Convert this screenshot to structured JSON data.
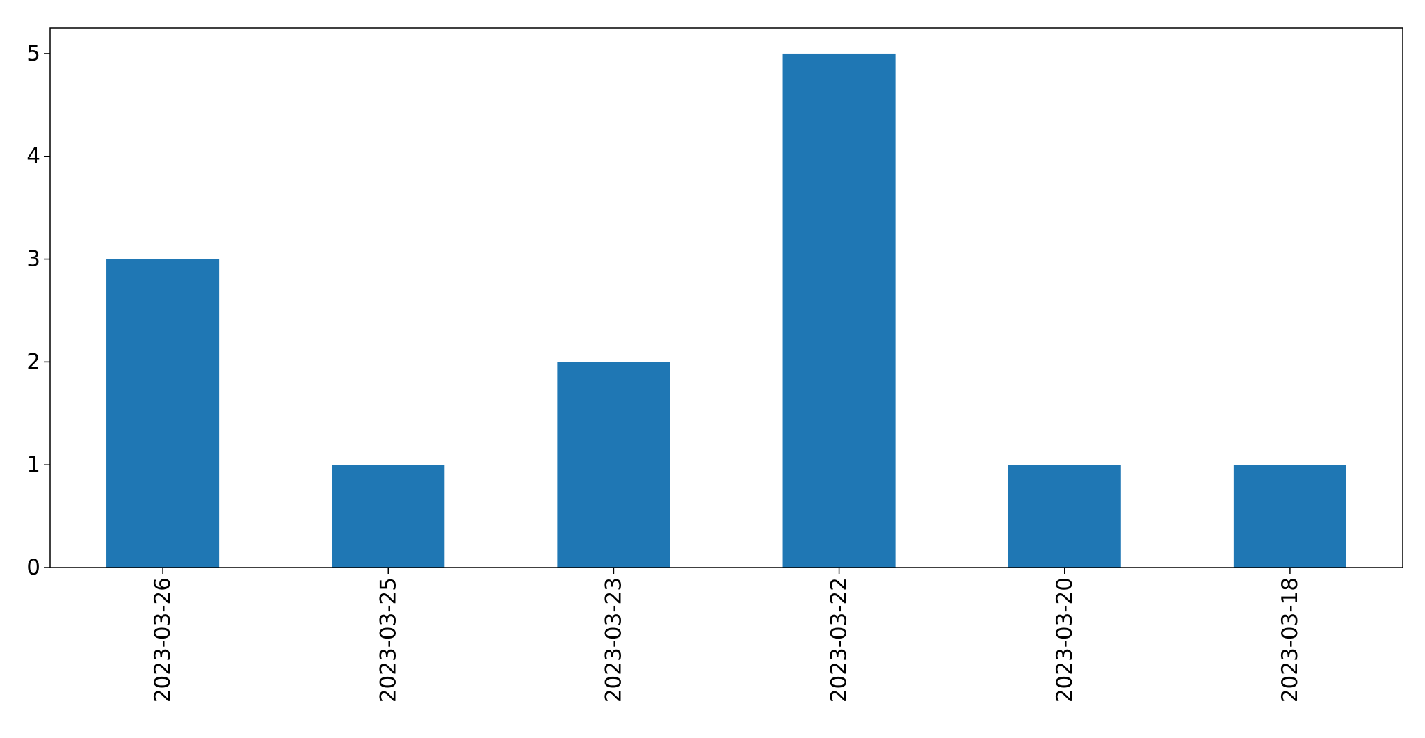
{
  "chart_data": {
    "type": "bar",
    "title": "",
    "xlabel": "",
    "ylabel": "",
    "categories": [
      "2023-03-26",
      "2023-03-25",
      "2023-03-23",
      "2023-03-22",
      "2023-03-20",
      "2023-03-18"
    ],
    "values": [
      3,
      1,
      2,
      5,
      1,
      1
    ],
    "ylim": [
      0,
      5.25
    ],
    "yticks": [
      0,
      1,
      2,
      3,
      4,
      5
    ],
    "xtick_rotation": "vertical",
    "grid": false,
    "legend": "none",
    "bar_color": "#1f77b4"
  }
}
